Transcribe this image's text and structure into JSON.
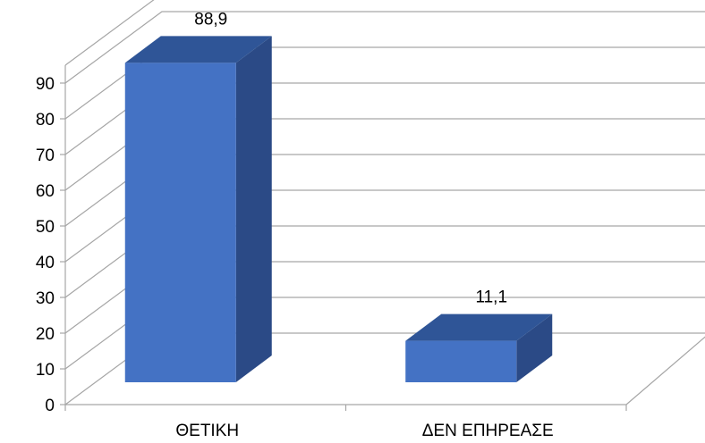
{
  "chart_data": {
    "type": "bar",
    "categories": [
      "ΘΕΤΙΚΗ",
      "ΔΕΝ ΕΠΗΡΕΑΣΕ"
    ],
    "values": [
      88.9,
      11.1
    ],
    "value_labels": [
      "88,9",
      "11,1"
    ],
    "title": "",
    "xlabel": "",
    "ylabel": "",
    "ylim": [
      0,
      90
    ],
    "yticks": [
      "0",
      "10",
      "20",
      "30",
      "40",
      "50",
      "60",
      "70",
      "80",
      "90"
    ],
    "style": "3d-column",
    "grid": true,
    "legend": "none",
    "colors": {
      "bar_front": "#4472c4",
      "bar_top": "#2f5597",
      "bar_side": "#2b4a86",
      "grid": "#a6a6a6"
    }
  }
}
